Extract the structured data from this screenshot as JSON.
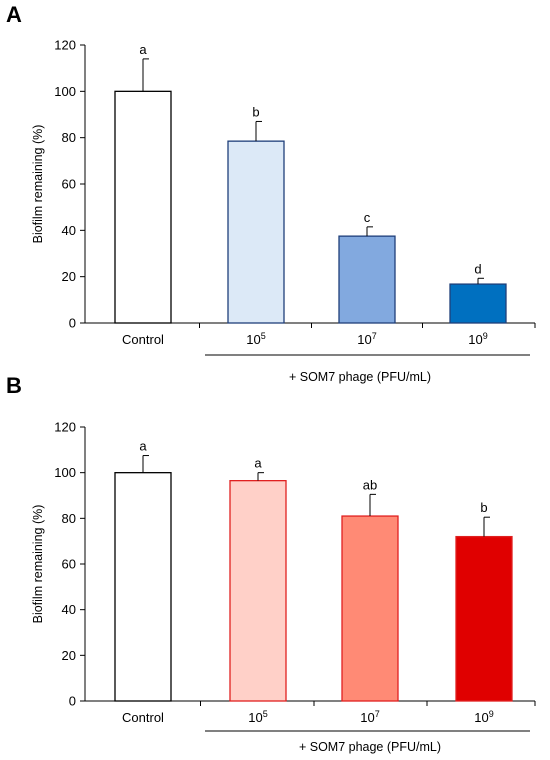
{
  "chart_data": [
    {
      "panel": "A",
      "type": "bar",
      "ylabel": "Biofilm remaining (%)",
      "ylim": [
        0,
        120
      ],
      "yticks": [
        "0",
        "20",
        "40",
        "60",
        "80",
        "100",
        "120"
      ],
      "categories": [
        {
          "base": "Control",
          "exp": ""
        },
        {
          "base": "10",
          "exp": "5"
        },
        {
          "base": "10",
          "exp": "7"
        },
        {
          "base": "10",
          "exp": "9"
        }
      ],
      "values": [
        100,
        78.5,
        37.5,
        16.8
      ],
      "errors": [
        14,
        8.5,
        4,
        2.5
      ],
      "significance": [
        "a",
        "b",
        "c",
        "d"
      ],
      "colors": [
        "#ffffff",
        "#dce9f7",
        "#82a9df",
        "#0070c0"
      ],
      "edge_colors": [
        "#000000",
        "#1f3f7a",
        "#1f3f7a",
        "#1f3f7a"
      ],
      "group_label": "+ SOM7 phage (PFU/mL)"
    },
    {
      "panel": "B",
      "type": "bar",
      "ylabel": "Biofilm remaining (%)",
      "ylim": [
        0,
        120
      ],
      "yticks": [
        "0",
        "20",
        "40",
        "60",
        "80",
        "100",
        "120"
      ],
      "categories": [
        {
          "base": "Control",
          "exp": ""
        },
        {
          "base": "10",
          "exp": "5"
        },
        {
          "base": "10",
          "exp": "7"
        },
        {
          "base": "10",
          "exp": "9"
        }
      ],
      "values": [
        100,
        96.5,
        81,
        72
      ],
      "errors": [
        7.5,
        3.5,
        9.5,
        8.5
      ],
      "significance": [
        "a",
        "a",
        "ab",
        "b"
      ],
      "colors": [
        "#ffffff",
        "#ffd0c8",
        "#ff8a75",
        "#e00000"
      ],
      "edge_colors": [
        "#000000",
        "#e02020",
        "#e02020",
        "#e02020"
      ],
      "group_label": "+ SOM7 phage (PFU/mL)"
    }
  ]
}
